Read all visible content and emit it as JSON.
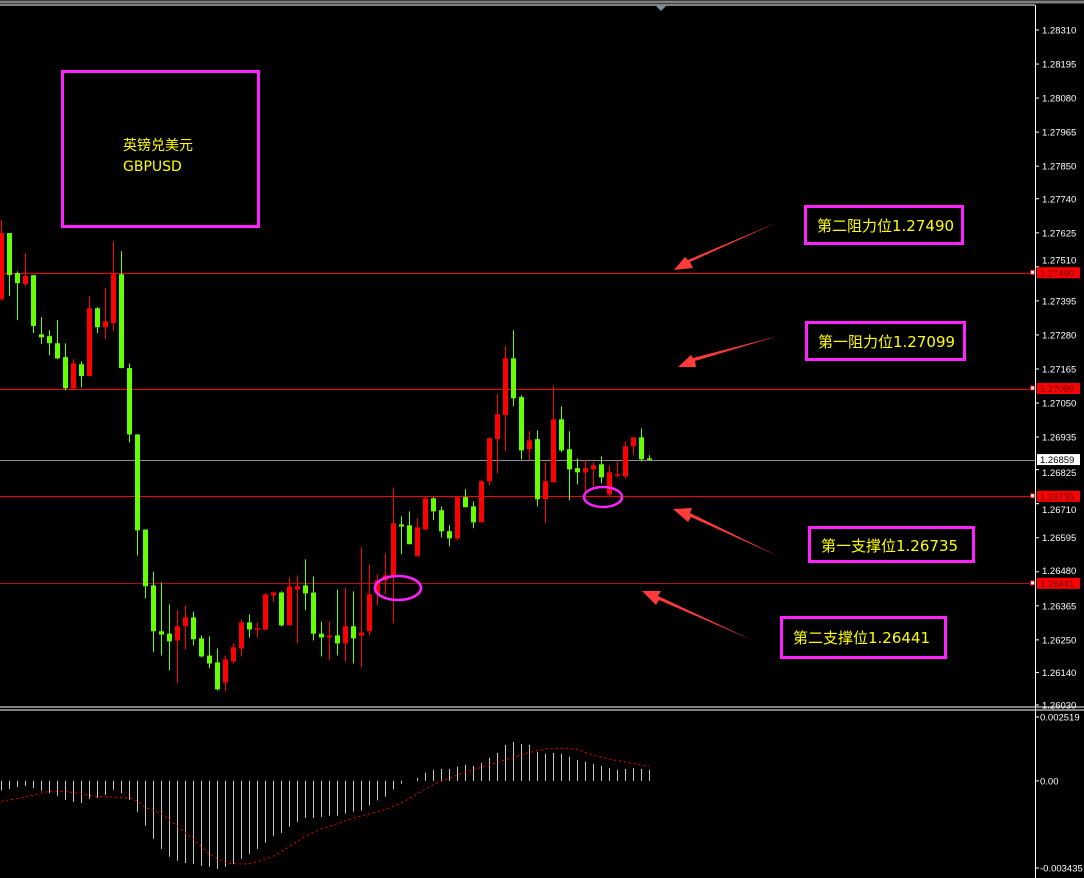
{
  "chart_data": {
    "type": "candlestick",
    "symbol_label": "英镑兑美元",
    "symbol": "GBPUSD",
    "colors": {
      "bullish": "#ff0000",
      "bearish": "#66ff00",
      "background": "#000000",
      "level_line": "#ff0000",
      "annotation_box": "#ff22ff",
      "annotation_text": "#ffff00",
      "arrow": "#ff3b3b",
      "macd_histogram": "#c8c8c8",
      "macd_signal": "#ff0000"
    },
    "price_axis": {
      "range": [
        1.2603,
        1.2831
      ],
      "ticks": [
        "1.28310",
        "1.28195",
        "1.28080",
        "1.27965",
        "1.27850",
        "1.27740",
        "1.27625",
        "1.27510",
        "1.27395",
        "1.27280",
        "1.27165",
        "1.27050",
        "1.26935",
        "1.26825",
        "1.26710",
        "1.26595",
        "1.26480",
        "1.26365",
        "1.26250",
        "1.26140",
        "1.26030"
      ]
    },
    "current_price": {
      "value": 1.26859,
      "label": "1.26859"
    },
    "levels": [
      {
        "value": 1.2749,
        "label": "1.27490",
        "note": "第二阻力位1.27490"
      },
      {
        "value": 1.27099,
        "label": "1.27099",
        "note": "第一阻力位1.27099"
      },
      {
        "value": 1.26735,
        "label": "1.26735",
        "note": "第一支撑位1.26735"
      },
      {
        "value": 1.26441,
        "label": "1.26441",
        "note": "第二支撑位1.26441"
      }
    ],
    "ohlc": [
      [
        1.27401,
        1.27668,
        1.27397,
        1.27624
      ],
      [
        1.27624,
        1.27624,
        1.27411,
        1.27482
      ],
      [
        1.27489,
        1.27495,
        1.2733,
        1.27455
      ],
      [
        1.27452,
        1.27556,
        1.27445,
        1.27479
      ],
      [
        1.27482,
        1.27482,
        1.27286,
        1.2731
      ],
      [
        1.27282,
        1.2734,
        1.27249,
        1.27272
      ],
      [
        1.27276,
        1.27296,
        1.27212,
        1.27252
      ],
      [
        1.27252,
        1.2733,
        1.27198,
        1.27201
      ],
      [
        1.27205,
        1.27252,
        1.27093,
        1.271
      ],
      [
        1.271,
        1.27198,
        1.27093,
        1.27184
      ],
      [
        1.27181,
        1.27191,
        1.27103,
        1.27141
      ],
      [
        1.27141,
        1.27411,
        1.27141,
        1.2737
      ],
      [
        1.2737,
        1.27374,
        1.27286,
        1.27306
      ],
      [
        1.27306,
        1.27438,
        1.27266,
        1.27326
      ],
      [
        1.2732,
        1.27597,
        1.27293,
        1.27485
      ],
      [
        1.27485,
        1.27563,
        1.27168,
        1.27168
      ],
      [
        1.27168,
        1.27184,
        1.26917,
        1.26944
      ],
      [
        1.26944,
        1.26944,
        1.26535,
        1.2662
      ],
      [
        1.26623,
        1.26623,
        1.2639,
        1.26431
      ],
      [
        1.26434,
        1.26481,
        1.26208,
        1.26279
      ],
      [
        1.26279,
        1.26444,
        1.26197,
        1.26268
      ],
      [
        1.26271,
        1.2637,
        1.26147,
        1.26245
      ],
      [
        1.26248,
        1.2635,
        1.26103,
        1.26296
      ],
      [
        1.26296,
        1.26366,
        1.26218,
        1.26326
      ],
      [
        1.26326,
        1.26346,
        1.26231,
        1.26252
      ],
      [
        1.26255,
        1.26265,
        1.26191,
        1.26194
      ],
      [
        1.26197,
        1.26262,
        1.26154,
        1.2617
      ],
      [
        1.26174,
        1.26221,
        1.26079,
        1.26083
      ],
      [
        1.26106,
        1.26197,
        1.26076,
        1.26184
      ],
      [
        1.26177,
        1.26238,
        1.2617,
        1.26225
      ],
      [
        1.26221,
        1.26319,
        1.26194,
        1.26309
      ],
      [
        1.26309,
        1.26336,
        1.26258,
        1.26285
      ],
      [
        1.26285,
        1.26309,
        1.26258,
        1.26289
      ],
      [
        1.26285,
        1.26407,
        1.26282,
        1.26404
      ],
      [
        1.264,
        1.26414,
        1.26377,
        1.2641
      ],
      [
        1.2641,
        1.26414,
        1.26295,
        1.26299
      ],
      [
        1.26299,
        1.26461,
        1.26299,
        1.26431
      ],
      [
        1.2642,
        1.26468,
        1.26238,
        1.26431
      ],
      [
        1.26434,
        1.26522,
        1.2635,
        1.26407
      ],
      [
        1.2641,
        1.26464,
        1.26248,
        1.26271
      ],
      [
        1.26271,
        1.26312,
        1.26194,
        1.26258
      ],
      [
        1.26258,
        1.26312,
        1.26181,
        1.26265
      ],
      [
        1.26265,
        1.2642,
        1.26197,
        1.26238
      ],
      [
        1.26238,
        1.26427,
        1.26177,
        1.26296
      ],
      [
        1.26296,
        1.26414,
        1.2617,
        1.26255
      ],
      [
        1.26265,
        1.26563,
        1.26157,
        1.26275
      ],
      [
        1.26279,
        1.26505,
        1.26265,
        1.26404
      ],
      [
        1.26407,
        1.26471,
        1.26366,
        1.26451
      ],
      [
        1.26451,
        1.26542,
        1.26404,
        1.26468
      ],
      [
        1.26461,
        1.26765,
        1.26306,
        1.26644
      ],
      [
        1.2664,
        1.26667,
        1.26539,
        1.26633
      ],
      [
        1.26637,
        1.26684,
        1.26573,
        1.26573
      ],
      [
        1.26532,
        1.26661,
        1.26532,
        1.2663
      ],
      [
        1.26623,
        1.26732,
        1.2662,
        1.26728
      ],
      [
        1.26728,
        1.26732,
        1.26654,
        1.26684
      ],
      [
        1.26688,
        1.26701,
        1.26596,
        1.26617
      ],
      [
        1.26617,
        1.26637,
        1.26566,
        1.26593
      ],
      [
        1.26593,
        1.26735,
        1.26586,
        1.26732
      ],
      [
        1.26732,
        1.26759,
        1.26698,
        1.26698
      ],
      [
        1.26701,
        1.26718,
        1.26627,
        1.26647
      ],
      [
        1.26647,
        1.26792,
        1.26647,
        1.26786
      ],
      [
        1.26786,
        1.26934,
        1.26772,
        1.26931
      ],
      [
        1.26928,
        1.2708,
        1.26813,
        1.27012
      ],
      [
        1.27009,
        1.27242,
        1.26887,
        1.27201
      ],
      [
        1.27201,
        1.27296,
        1.27039,
        1.27066
      ],
      [
        1.2707,
        1.27076,
        1.2686,
        1.2689
      ],
      [
        1.26894,
        1.26955,
        1.26857,
        1.26924
      ],
      [
        1.26928,
        1.26958,
        1.26701,
        1.26725
      ],
      [
        1.26725,
        1.2685,
        1.26644,
        1.26786
      ],
      [
        1.26782,
        1.27107,
        1.26782,
        1.26995
      ],
      [
        1.26995,
        1.27039,
        1.26884,
        1.2689
      ],
      [
        1.26894,
        1.26955,
        1.26721,
        1.26826
      ],
      [
        1.2683,
        1.26863,
        1.26775,
        1.26816
      ],
      [
        1.26816,
        1.26857,
        1.26748,
        1.2683
      ],
      [
        1.26826,
        1.2685,
        1.26768,
        1.2684
      ],
      [
        1.26843,
        1.2687,
        1.26779,
        1.26799
      ],
      [
        1.26741,
        1.2684,
        1.26735,
        1.26816
      ],
      [
        1.26806,
        1.26853,
        1.26799,
        1.26809
      ],
      [
        1.26802,
        1.26921,
        1.26795,
        1.26904
      ],
      [
        1.26904,
        1.26934,
        1.26874,
        1.26934
      ],
      [
        1.26934,
        1.26964,
        1.26853,
        1.2686
      ],
      [
        1.26863,
        1.26874,
        1.26857,
        1.26859
      ]
    ],
    "macd": {
      "axis_range": [
        -0.003435,
        0.002519
      ],
      "ticks": [
        "0.002519",
        "0.00",
        "-0.003435"
      ],
      "histogram": [
        -0.00038,
        -0.00032,
        -0.00024,
        -0.0002,
        -0.00028,
        -0.00039,
        -0.00049,
        -0.00059,
        -0.00075,
        -0.00083,
        -0.00087,
        -0.00071,
        -0.00067,
        -0.00055,
        -0.00035,
        -0.00049,
        -0.00074,
        -0.00122,
        -0.00177,
        -0.00228,
        -0.00268,
        -0.00299,
        -0.00315,
        -0.00324,
        -0.00327,
        -0.00335,
        -0.00339,
        -0.00347,
        -0.00339,
        -0.00327,
        -0.00307,
        -0.00288,
        -0.00268,
        -0.00244,
        -0.00217,
        -0.00205,
        -0.00181,
        -0.00161,
        -0.00146,
        -0.00146,
        -0.00142,
        -0.00137,
        -0.00137,
        -0.00129,
        -0.00121,
        -0.00117,
        -0.00097,
        -0.00077,
        -0.00062,
        -0.00034,
        -0.00011,
        0.0,
        0.00012,
        0.00032,
        0.00043,
        0.00047,
        0.00047,
        0.00055,
        0.00063,
        0.00059,
        0.00071,
        0.00091,
        0.0011,
        0.00142,
        0.00154,
        0.00146,
        0.00142,
        0.00114,
        0.00106,
        0.0011,
        0.00106,
        0.00095,
        0.00083,
        0.00075,
        0.00067,
        0.00059,
        0.00051,
        0.00043,
        0.00047,
        0.00051,
        0.00047,
        0.00043
      ],
      "signal": [
        -0.0008,
        -0.00075,
        -0.0007,
        -0.00063,
        -0.00056,
        -0.00048,
        -0.00041,
        -0.00041,
        -0.00041,
        -0.00046,
        -0.00051,
        -0.00056,
        -0.00062,
        -0.00063,
        -0.00064,
        -0.00066,
        -0.00068,
        -0.0008,
        -0.00104,
        -0.00117,
        -0.0013,
        -0.00155,
        -0.00179,
        -0.00205,
        -0.00231,
        -0.0026,
        -0.0029,
        -0.00307,
        -0.00323,
        -0.00326,
        -0.00328,
        -0.00327,
        -0.00319,
        -0.00308,
        -0.00297,
        -0.00278,
        -0.00259,
        -0.00238,
        -0.00218,
        -0.00203,
        -0.00188,
        -0.00179,
        -0.00169,
        -0.00157,
        -0.00146,
        -0.00138,
        -0.0013,
        -0.00121,
        -0.00113,
        -0.001,
        -0.00087,
        -0.00069,
        -0.00051,
        -0.00032,
        -0.00014,
        -1e-05,
        0.00012,
        0.00023,
        0.00035,
        0.00044,
        0.00054,
        0.00064,
        0.00074,
        0.00083,
        0.00093,
        0.00102,
        0.00112,
        0.00119,
        0.00126,
        0.00128,
        0.00129,
        0.00127,
        0.00124,
        0.00112,
        0.00101,
        0.00093,
        0.00085,
        0.0008,
        0.00074,
        0.00068,
        0.00063,
        0.00058
      ]
    }
  }
}
